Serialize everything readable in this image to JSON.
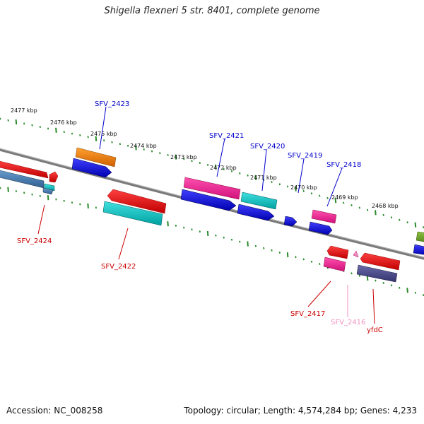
{
  "map": {
    "title": "Shigella flexneri 5 str. 8401, complete genome",
    "accession": "Accession: NC_008258",
    "summary": "Topology: circular; Length: 4,574,284 bp; Genes: 4,233"
  },
  "colors": {
    "backbone": "#808080",
    "ticks": "#2a8a2a",
    "label_blue": "#0000cc",
    "label_red": "#cc0000",
    "label_pink": "#f090c0"
  },
  "scale_labels": [
    "2477 kbp",
    "2476 kbp",
    "2475 kbp",
    "2474 kbp",
    "2473 kbp",
    "2472 kbp",
    "2471 kbp",
    "2470 kbp",
    "2469 kbp",
    "2468 kbp"
  ],
  "gene_labels": [
    "SFV_2423",
    "SFV_2421",
    "SFV_2420",
    "SFV_2419",
    "SFV_2418",
    "SFV_2424",
    "SFV_2422",
    "SFV_2417",
    "SFV_2416",
    "yfdC"
  ]
}
